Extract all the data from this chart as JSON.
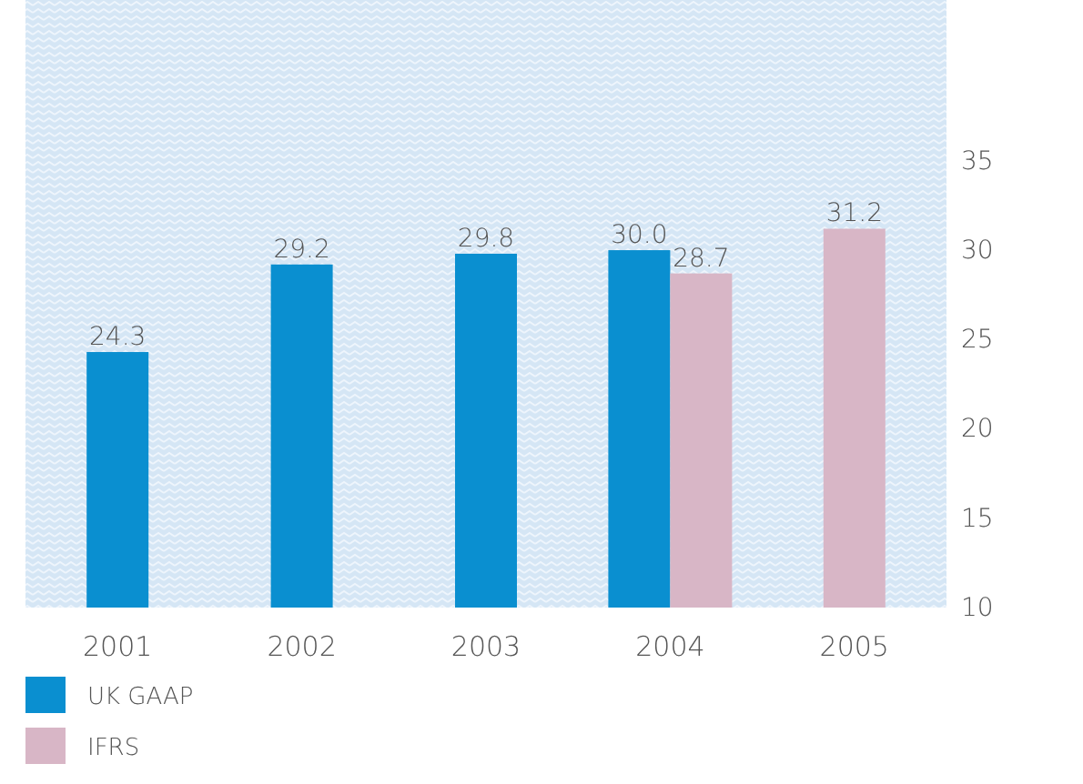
{
  "chart_data": {
    "type": "bar",
    "categories": [
      "2001",
      "2002",
      "2003",
      "2004",
      "2005"
    ],
    "series": [
      {
        "name": "UK GAAP",
        "color": "#0a8fd0",
        "values": [
          24.3,
          29.2,
          29.8,
          30.0,
          null
        ],
        "value_labels": [
          "24.3",
          "29.2",
          "29.8",
          "30.0",
          null
        ]
      },
      {
        "name": "IFRS",
        "color": "#d8b6c6",
        "values": [
          null,
          null,
          null,
          28.7,
          31.2
        ],
        "value_labels": [
          null,
          null,
          null,
          "28.7",
          "31.2"
        ]
      }
    ],
    "ylim": [
      10,
      44
    ],
    "yticks": [
      10,
      15,
      20,
      25,
      30,
      35
    ],
    "legend": "bottom left"
  }
}
